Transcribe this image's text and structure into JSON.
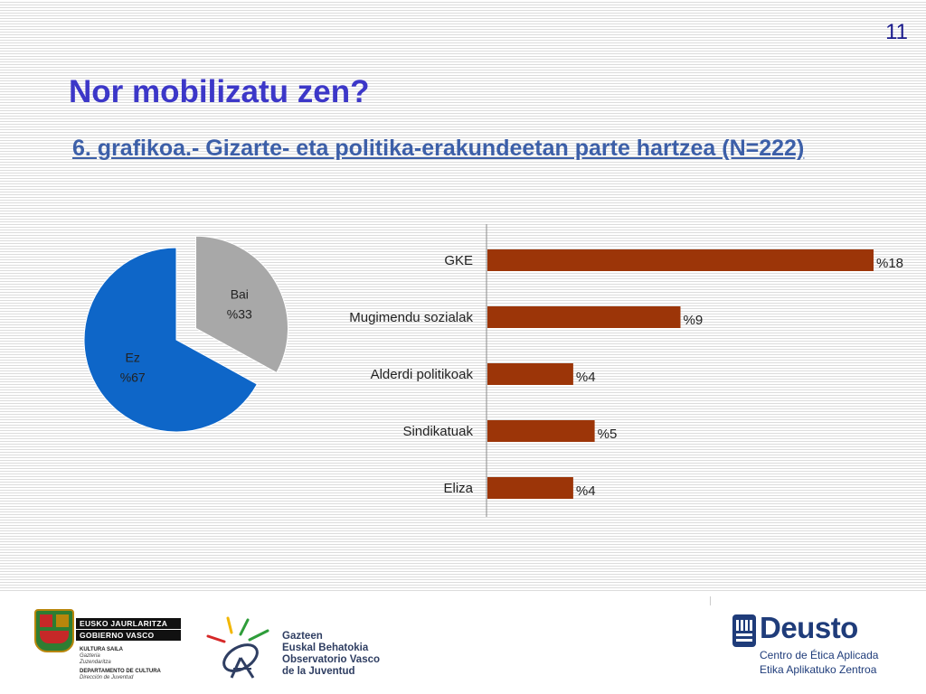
{
  "page_number": "11",
  "title": "Nor mobilizatu zen?",
  "subtitle": "6. grafikoa.- Gizarte- eta politika-erakundeetan parte hartzea (N=222)",
  "chart_data": [
    {
      "type": "pie",
      "slices": [
        {
          "label": "Bai",
          "value": 33,
          "value_label": "%33",
          "color": "#a8a8a8",
          "exploded": true
        },
        {
          "label": "Ez",
          "value": 67,
          "value_label": "%67",
          "color": "#0e66c8",
          "exploded": false
        }
      ]
    },
    {
      "type": "bar",
      "orientation": "horizontal",
      "categories": [
        "GKE",
        "Mugimendu sozialak",
        "Alderdi politikoak",
        "Sindikatuak",
        "Eliza"
      ],
      "values": [
        18,
        9,
        4,
        5,
        4
      ],
      "value_labels": [
        "%18",
        "%9",
        "%4",
        "%5",
        "%4"
      ],
      "color": "#9c3508",
      "xlim": [
        0,
        18
      ]
    }
  ],
  "logos": {
    "gv": {
      "line1": "EUSKO JAURLARITZA",
      "line2": "GOBIERNO VASCO",
      "dept1": "KULTURA SAILA",
      "dept1b": "Gazteria",
      "dept1c": "Zuzendaritza",
      "dept2": "DEPARTAMENTO DE CULTURA",
      "dept2b": "Dirección de Juventud"
    },
    "gazteen": {
      "line1": "Gazteen",
      "line2": "Euskal Behatokia",
      "line3": "Observatorio Vasco",
      "line4": "de la Juventud"
    },
    "deusto": {
      "name": "Deusto",
      "line1": "Centro de Ética Aplicada",
      "line2": "Etika Aplikatuko Zentroa"
    }
  }
}
